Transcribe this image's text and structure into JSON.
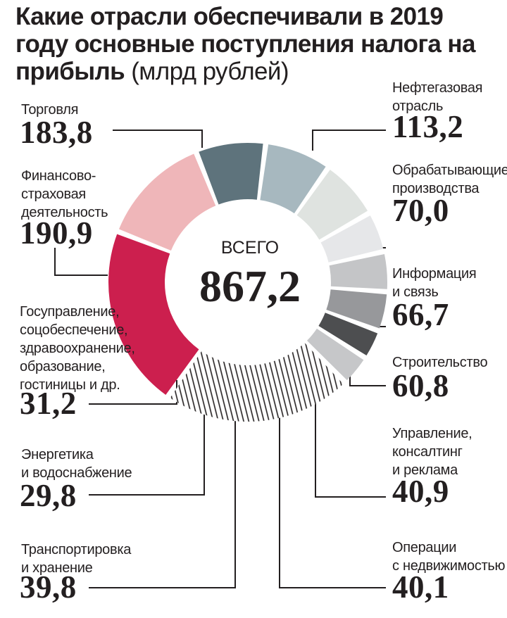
{
  "title": {
    "main": "Какие отрасли обеспечивали в 2019 году основные поступления налога на прибыль",
    "unit": "(млрд рублей)"
  },
  "center": {
    "label": "ВСЕГО",
    "value": "867,2"
  },
  "colors": {
    "torgovlya": "#cc1f4e",
    "neftegaz": "#efb6b9",
    "obrabat": "#5e737c",
    "inform": "#a7b8bf",
    "stroit": "#dfe3e0",
    "upravlenie": "#e6e7e9",
    "nedvizh": "#c4c5c7",
    "transport": "#97989b",
    "energetika": "#4d4e50",
    "gos": "#c6c7c9",
    "finance_hatch": "#231f20"
  },
  "segments": [
    {
      "id": "torgovlya",
      "label": "Торговля",
      "value": "183,8"
    },
    {
      "id": "neftegaz",
      "label": "Нефтегазовая\nотрасль",
      "value": "113,2"
    },
    {
      "id": "obrabat",
      "label": "Обрабатывающие\nпроизводства",
      "value": "70,0"
    },
    {
      "id": "inform",
      "label": "Информация\nи связь",
      "value": "66,7"
    },
    {
      "id": "stroit",
      "label": "Строительство",
      "value": "60,8"
    },
    {
      "id": "upravlenie",
      "label": "Управление,\nконсалтинг\nи реклама",
      "value": "40,9"
    },
    {
      "id": "nedvizh",
      "label": "Операции\nс недвижимостью",
      "value": "40,1"
    },
    {
      "id": "transport",
      "label": "Транспортировка\nи хранение",
      "value": "39,8"
    },
    {
      "id": "energetika",
      "label": "Энергетика\nи водоснабжение",
      "value": "29,8"
    },
    {
      "id": "gos",
      "label": "Госуправление,\nсоцобеспечение,\nздравоохранение,\nобразование,\nгостиницы и др.",
      "value": "31,2"
    },
    {
      "id": "finance",
      "label": "Финансово-\nстраховая\nдеятельность",
      "value": "190,9"
    }
  ],
  "chart_data": {
    "type": "pie",
    "style": "donut, segments separated by gaps",
    "title": "Какие отрасли обеспечивали в 2019 году основные поступления налога на прибыль (млрд рублей)",
    "total": 867.2,
    "categories": [
      "Торговля",
      "Нефтегазовая отрасль",
      "Обрабатывающие производства",
      "Информация и связь",
      "Строительство",
      "Управление, консалтинг и реклама",
      "Операции с недвижимостью",
      "Транспортировка и хранение",
      "Энергетика и водоснабжение",
      "Госуправление, соцобеспечение, здравоохранение, образование, гостиницы и др.",
      "Финансово-страховая деятельность"
    ],
    "values": [
      183.8,
      113.2,
      70.0,
      66.7,
      60.8,
      40.9,
      40.1,
      39.8,
      29.8,
      31.2,
      190.9
    ]
  }
}
